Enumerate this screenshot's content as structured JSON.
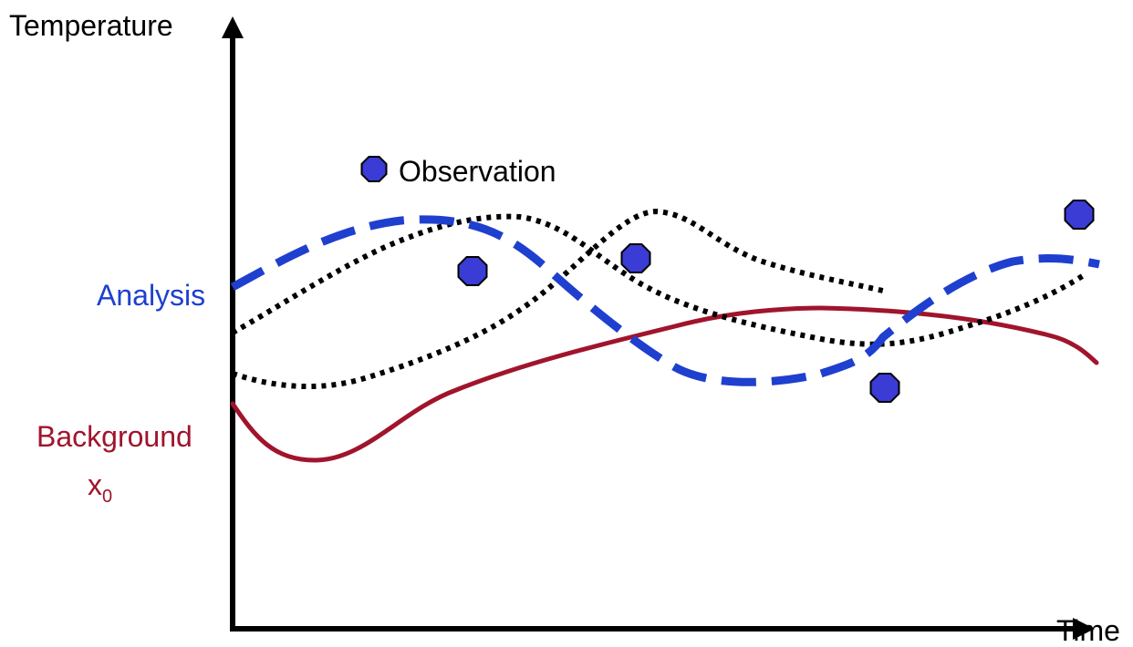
{
  "axes": {
    "y_label": "Temperature",
    "x_label": "Time"
  },
  "legend": {
    "observation_label": "Observation"
  },
  "labels": {
    "analysis": "Analysis",
    "background": "Background",
    "background_symbol_base": "x",
    "background_symbol_subscript": "0"
  },
  "colors": {
    "axis": "#000000",
    "analysis": "#1f3fcf",
    "background": "#a0142c",
    "forecast": "#000000",
    "observation_fill": "#3b3bd6",
    "observation_stroke": "#000000"
  }
}
